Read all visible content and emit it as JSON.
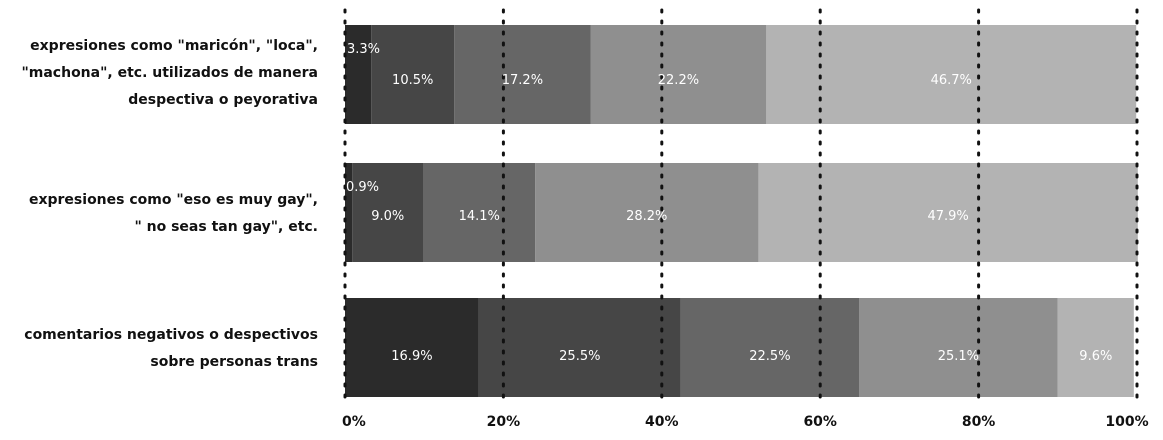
{
  "chart_data": {
    "type": "bar",
    "orientation": "horizontal",
    "stacked": true,
    "categories": [
      {
        "lines": [
          "expresiones como \"maricón\", \"loca\",",
          "\"machona\", etc. utilizados de manera",
          "despectiva o peyorativa"
        ]
      },
      {
        "lines": [
          "expresiones como \"eso es muy gay\",",
          "\" no seas tan gay\", etc."
        ]
      },
      {
        "lines": [
          "comentarios negativos o despectivos",
          "sobre personas trans"
        ]
      }
    ],
    "values": [
      [
        3.3,
        10.5,
        17.2,
        22.2,
        46.7
      ],
      [
        0.9,
        9.0,
        14.1,
        28.2,
        47.9
      ],
      [
        16.9,
        25.5,
        22.5,
        25.1,
        9.6
      ]
    ],
    "value_labels": [
      [
        "3.3%",
        "10.5%",
        "17.2%",
        "22.2%",
        "46.7%"
      ],
      [
        "0.9%",
        "9.0%",
        "14.1%",
        "28.2%",
        "47.9%"
      ],
      [
        "16.9%",
        "25.5%",
        "22.5%",
        "25.1%",
        "9.6%"
      ]
    ],
    "segment_colors": [
      "#2b2b2b",
      "#464646",
      "#666666",
      "#8f8f8f",
      "#b3b3b3"
    ],
    "xlim": [
      0,
      100
    ],
    "x_ticks": [
      "0%",
      "20%",
      "40%",
      "60%",
      "80%",
      "100%"
    ],
    "x_tick_values": [
      0,
      20,
      40,
      60,
      80,
      100
    ],
    "grid": true,
    "grid_style": "dotted"
  }
}
